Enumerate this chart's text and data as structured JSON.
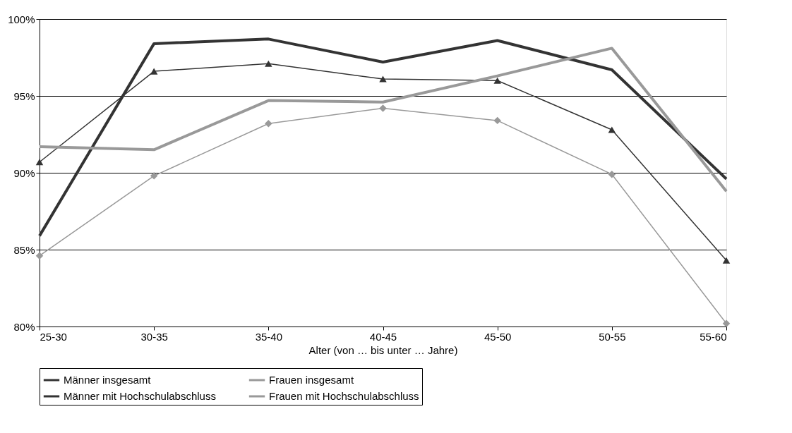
{
  "chart_data": {
    "type": "line",
    "xlabel": "Alter (von … bis unter … Jahre)",
    "categories": [
      "25-30",
      "30-35",
      "35-40",
      "40-45",
      "45-50",
      "50-55",
      "55-60"
    ],
    "series": [
      {
        "name": "Männer insgesamt",
        "color": "#333333",
        "marker": "triangle",
        "values": [
          90.7,
          96.6,
          97.1,
          96.1,
          96.0,
          92.8,
          84.3
        ]
      },
      {
        "name": "Frauen insgesamt",
        "color": "#999999",
        "marker": "diamond",
        "values": [
          84.6,
          89.8,
          93.2,
          94.2,
          93.4,
          89.9,
          80.2
        ]
      },
      {
        "name": "Männer mit Hochschulabschluss",
        "color": "#333333",
        "marker": "none",
        "values": [
          85.9,
          98.4,
          98.7,
          97.2,
          98.6,
          96.7,
          89.6
        ]
      },
      {
        "name": "Frauen mit Hochschulabschluss",
        "color": "#999999",
        "marker": "none",
        "values": [
          91.7,
          91.5,
          94.7,
          94.6,
          96.3,
          98.1,
          88.8
        ]
      }
    ],
    "ylim": [
      80,
      100
    ],
    "yticks": [
      {
        "value": 80,
        "label": "80%"
      },
      {
        "value": 85,
        "label": "85%"
      },
      {
        "value": 90,
        "label": "90%"
      },
      {
        "value": 95,
        "label": "95%"
      },
      {
        "value": 100,
        "label": "100%"
      }
    ],
    "grid": "y",
    "legend": "bottom",
    "line_style": "solid"
  }
}
